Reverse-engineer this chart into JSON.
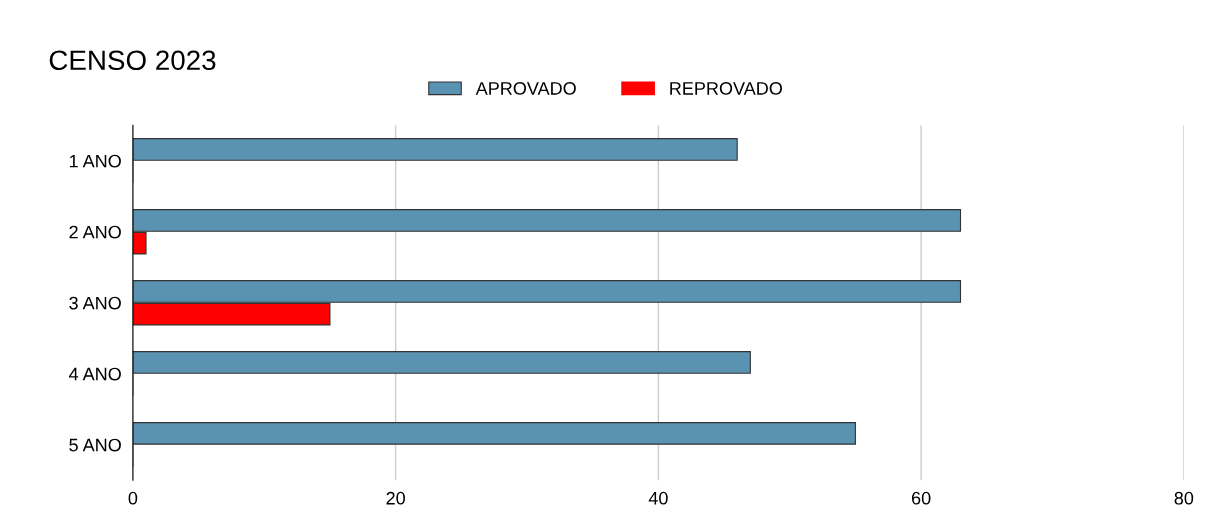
{
  "chart_data": {
    "type": "bar",
    "orientation": "horizontal",
    "title": "CENSO 2023",
    "categories": [
      "1 ANO",
      "2 ANO",
      "3 ANO",
      "4 ANO",
      "5 ANO"
    ],
    "series": [
      {
        "name": "APROVADO",
        "color": "#5a93b1",
        "values": [
          46,
          63,
          63,
          47,
          55
        ]
      },
      {
        "name": "REPROVADO",
        "color": "#ff0000",
        "values": [
          0,
          1,
          15,
          0,
          0
        ]
      }
    ],
    "xlim": [
      0,
      80
    ],
    "xticks": [
      0,
      20,
      40,
      60,
      80
    ],
    "grid": "x",
    "legend": "top"
  }
}
